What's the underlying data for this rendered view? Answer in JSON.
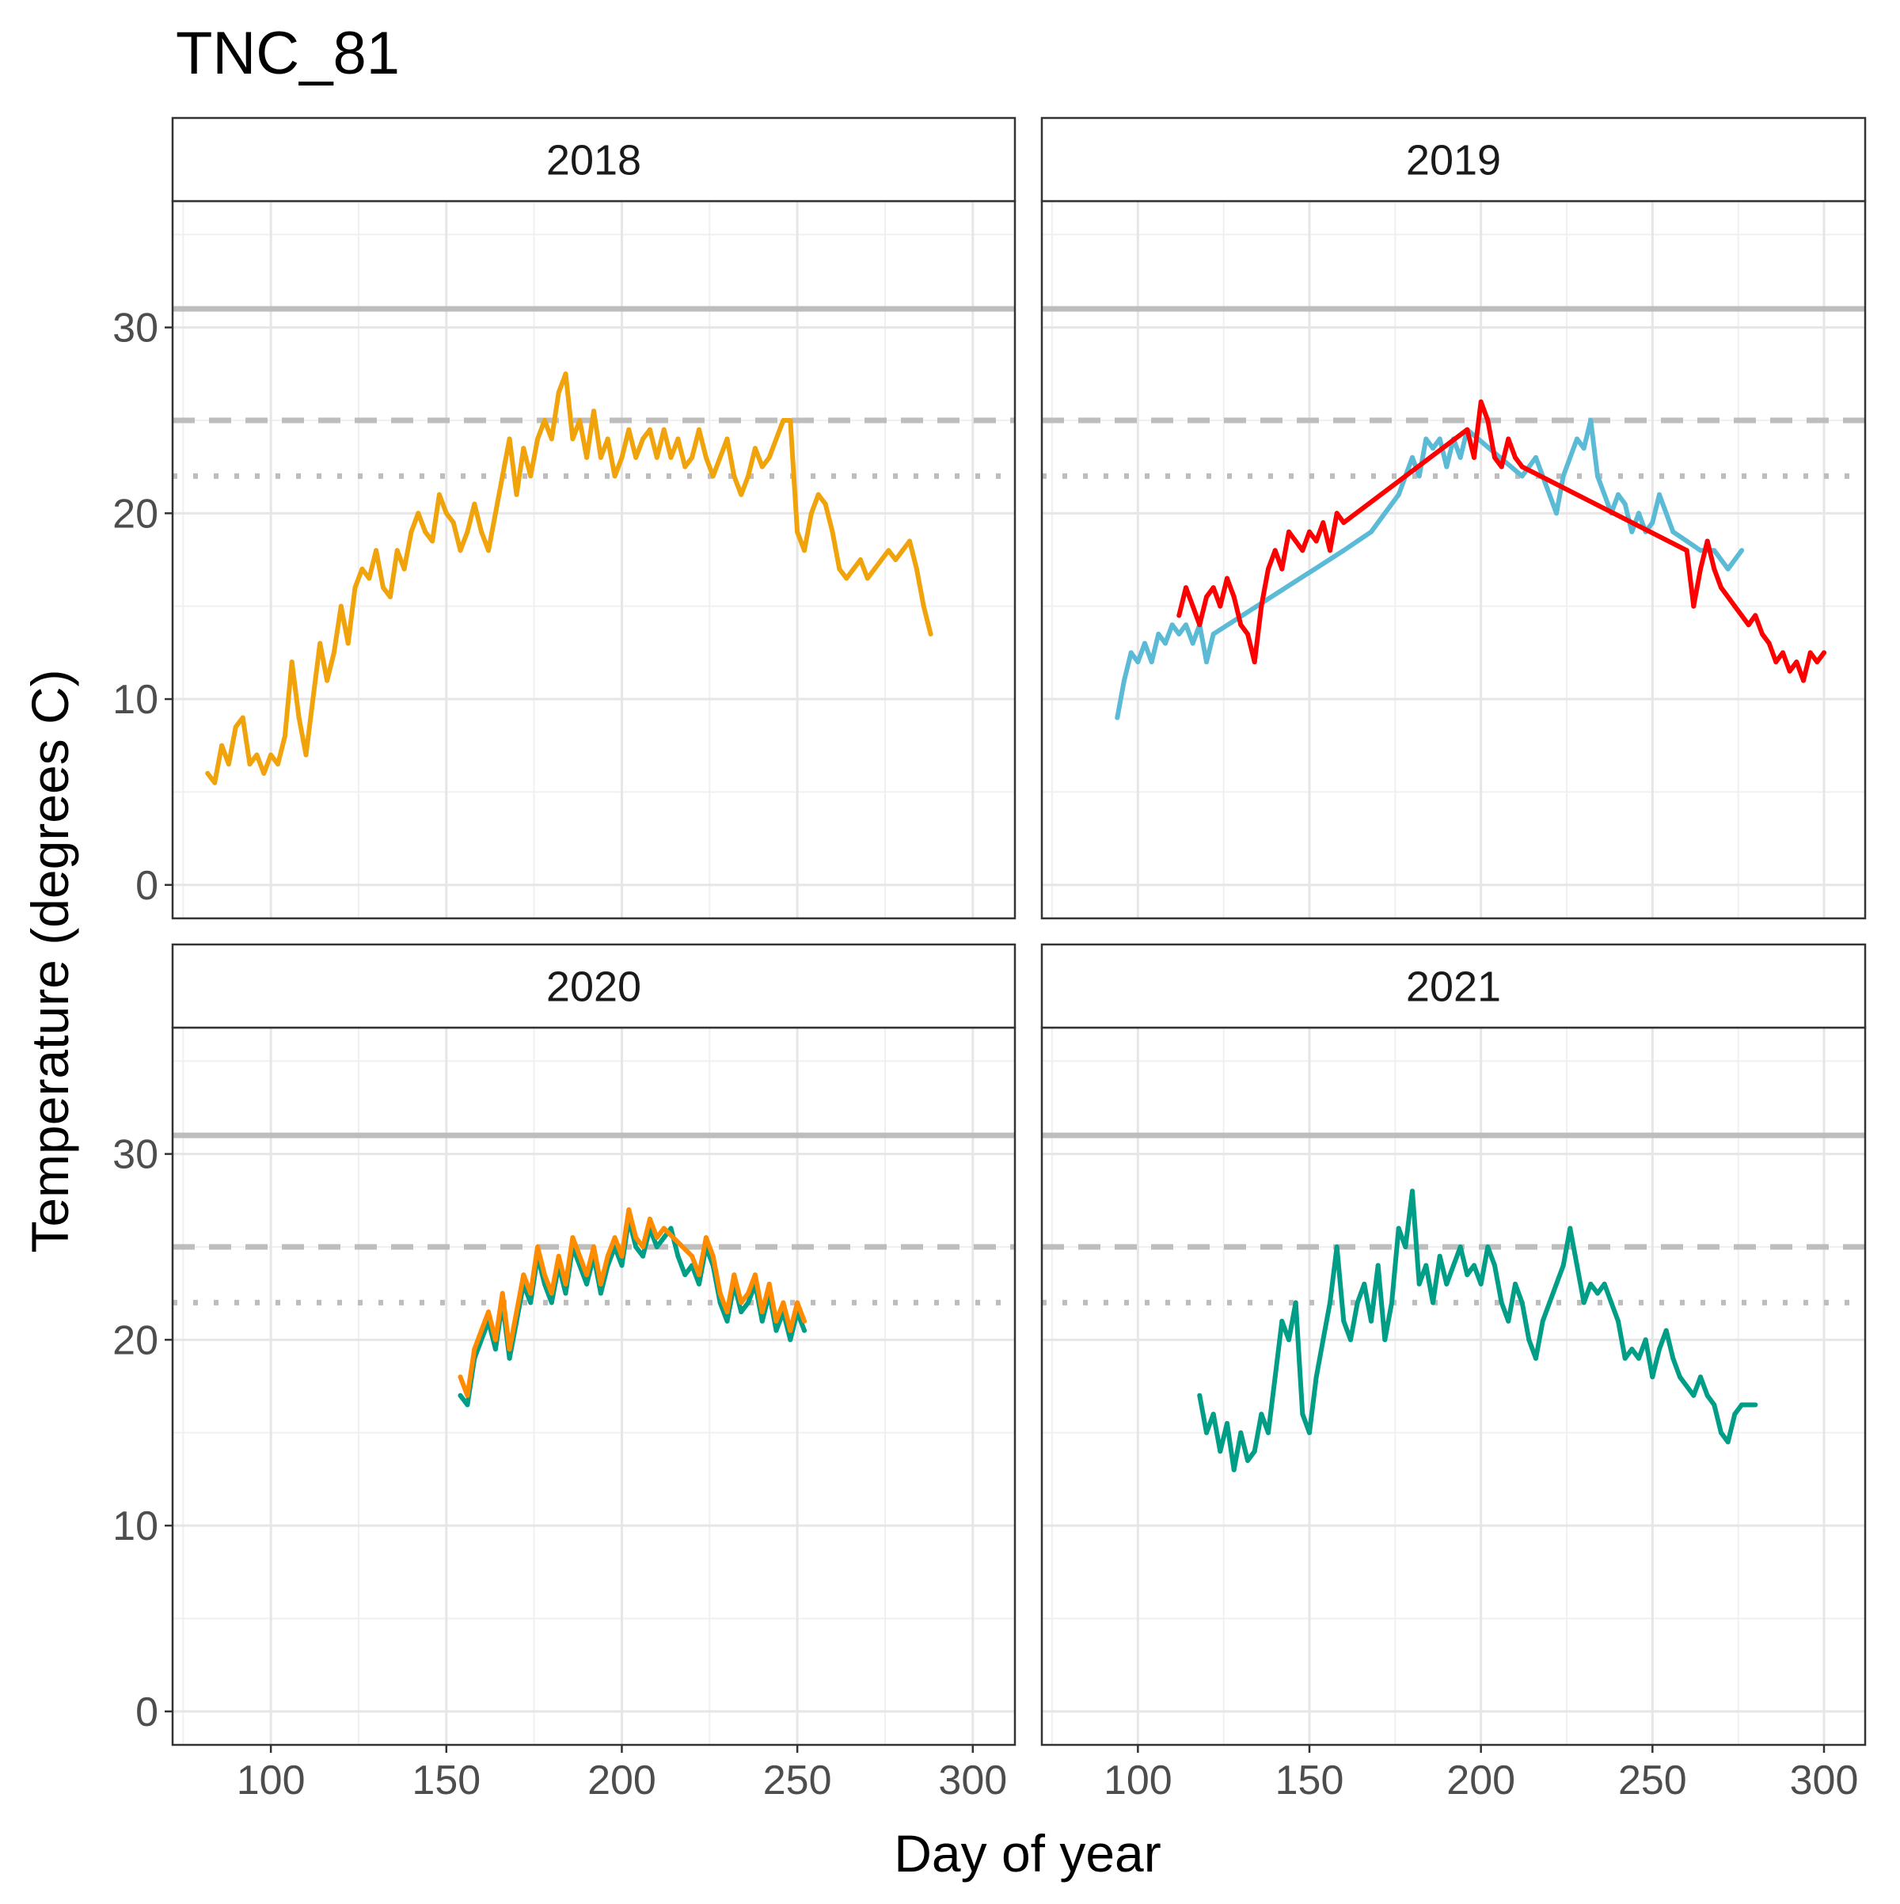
{
  "chart_data": {
    "type": "line",
    "title": "TNC_81",
    "xlabel": "Day of year",
    "ylabel": "Temperature (degrees C)",
    "xlim": [
      72,
      312
    ],
    "ylim": [
      -1.8,
      36.8
    ],
    "x_ticks": [
      100,
      150,
      200,
      250,
      300
    ],
    "y_ticks": [
      0,
      10,
      20,
      30
    ],
    "grid": true,
    "reference_lines": [
      {
        "y": 31,
        "style": "solid",
        "color": "#bdbdbd"
      },
      {
        "y": 25,
        "style": "dashed",
        "color": "#bdbdbd"
      },
      {
        "y": 22,
        "style": "dotted",
        "color": "#bdbdbd"
      }
    ],
    "panels": [
      {
        "strip": "2018",
        "series": [
          {
            "color": "#F0A30A",
            "x": [
              82,
              84,
              86,
              88,
              90,
              92,
              94,
              96,
              98,
              100,
              102,
              104,
              106,
              108,
              110,
              112,
              114,
              116,
              118,
              120,
              122,
              124,
              126,
              128,
              130,
              132,
              134,
              136,
              138,
              140,
              142,
              144,
              146,
              148,
              150,
              152,
              154,
              156,
              158,
              160,
              162,
              164,
              166,
              168,
              170,
              172,
              174,
              176,
              178,
              180,
              182,
              184,
              186,
              188,
              190,
              192,
              194,
              196,
              198,
              200,
              202,
              204,
              206,
              208,
              210,
              212,
              214,
              216,
              218,
              220,
              222,
              224,
              226,
              228,
              230,
              232,
              234,
              236,
              238,
              240,
              242,
              244,
              246,
              248,
              250,
              252,
              254,
              256,
              258,
              260,
              262,
              264,
              266,
              268,
              270,
              272,
              274,
              276,
              278,
              280,
              282,
              284,
              286,
              288
            ],
            "y": [
              6,
              5.5,
              7.5,
              6.5,
              8.5,
              9,
              6.5,
              7,
              6,
              7,
              6.5,
              8,
              12,
              9,
              7,
              10,
              13,
              11,
              12.5,
              15,
              13,
              16,
              17,
              16.5,
              18,
              16,
              15.5,
              18,
              17,
              19,
              20,
              19,
              18.5,
              21,
              20,
              19.5,
              18,
              19,
              20.5,
              19,
              18,
              20,
              22,
              24,
              21,
              23.5,
              22,
              24,
              25,
              24,
              26.5,
              27.5,
              24,
              25,
              23,
              25.5,
              23,
              24,
              22,
              23,
              24.5,
              23,
              24,
              24.5,
              23,
              24.5,
              23,
              24,
              22.5,
              23,
              24.5,
              23,
              22,
              23,
              24,
              22,
              21,
              22,
              23.5,
              22.5,
              23,
              24,
              25,
              25,
              19,
              18,
              20,
              21,
              20.5,
              19,
              17,
              16.5,
              17,
              17.5,
              16.5,
              17,
              17.5,
              18,
              17.5,
              18,
              18.5,
              17,
              15,
              13.5
            ]
          }
        ]
      },
      {
        "strip": "2019",
        "series": [
          {
            "color": "#5BBAD5",
            "x": [
              94,
              96,
              98,
              100,
              102,
              104,
              106,
              108,
              110,
              112,
              114,
              116,
              118,
              120,
              122,
              160,
              164,
              168,
              172,
              176,
              180,
              182,
              184,
              186,
              188,
              190,
              192,
              194,
              196,
              212,
              216,
              220,
              222,
              224,
              226,
              228,
              230,
              232,
              234,
              236,
              238,
              240,
              242,
              244,
              246,
              248,
              250,
              252,
              254,
              256,
              260,
              264,
              268,
              272,
              276
            ],
            "y": [
              9,
              11,
              12.5,
              12,
              13,
              12,
              13.5,
              13,
              14,
              13.5,
              14,
              13,
              14,
              12,
              13.5,
              18,
              18.5,
              19,
              20,
              21,
              23,
              22,
              24,
              23.5,
              24,
              22.5,
              24,
              23,
              24.5,
              22,
              23,
              21,
              20,
              22,
              23,
              24,
              23.5,
              25,
              22,
              21,
              20,
              21,
              20.5,
              19,
              20,
              19,
              19.5,
              21,
              20,
              19,
              18.5,
              18,
              18,
              17,
              18
            ]
          },
          {
            "color": "#FF0000",
            "x": [
              112,
              114,
              116,
              118,
              120,
              122,
              124,
              126,
              128,
              130,
              132,
              134,
              136,
              138,
              140,
              142,
              144,
              146,
              148,
              150,
              152,
              154,
              156,
              158,
              160,
              196,
              198,
              200,
              202,
              204,
              206,
              208,
              210,
              212,
              260,
              262,
              264,
              266,
              268,
              270,
              274,
              276,
              278,
              280,
              282,
              284,
              286,
              288,
              290,
              292,
              294,
              296,
              298,
              300
            ],
            "y": [
              14.5,
              16,
              15,
              14,
              15.5,
              16,
              15,
              16.5,
              15.5,
              14,
              13.5,
              12,
              15,
              17,
              18,
              17,
              19,
              18.5,
              18,
              19,
              18.5,
              19.5,
              18,
              20,
              19.5,
              24.5,
              23,
              26,
              25,
              23,
              22.5,
              24,
              23,
              22.5,
              18,
              15,
              17,
              18.5,
              17,
              16,
              15,
              14.5,
              14,
              14.5,
              13.5,
              13,
              12,
              12.5,
              11.5,
              12,
              11,
              12.5,
              12,
              12.5
            ]
          }
        ]
      },
      {
        "strip": "2020",
        "series": [
          {
            "color": "#009E87",
            "x": [
              154,
              156,
              158,
              160,
              162,
              164,
              166,
              168,
              170,
              172,
              174,
              176,
              178,
              180,
              182,
              184,
              186,
              188,
              190,
              192,
              194,
              196,
              198,
              200,
              202,
              204,
              206,
              208,
              210,
              212,
              214,
              216,
              218,
              220,
              222,
              224,
              226,
              228,
              230,
              232,
              234,
              236,
              238,
              240,
              242,
              244,
              246,
              248,
              250,
              252
            ],
            "y": [
              17,
              16.5,
              19,
              20,
              21,
              19.5,
              22,
              19,
              21,
              23,
              22,
              24.5,
              23,
              22,
              24,
              22.5,
              25,
              24,
              23,
              24.5,
              22.5,
              24,
              25,
              24,
              26.5,
              25,
              24.5,
              26,
              25,
              25.5,
              26,
              24.5,
              23.5,
              24,
              23,
              25,
              24,
              22,
              21,
              23,
              21.5,
              22,
              23,
              21,
              22.5,
              20.5,
              21.5,
              20,
              21.5,
              20.5
            ]
          },
          {
            "color": "#FF8C00",
            "x": [
              154,
              156,
              158,
              160,
              162,
              164,
              166,
              168,
              170,
              172,
              174,
              176,
              178,
              180,
              182,
              184,
              186,
              188,
              190,
              192,
              194,
              196,
              198,
              200,
              202,
              204,
              206,
              208,
              210,
              212,
              220,
              222,
              224,
              226,
              228,
              230,
              232,
              234,
              236,
              238,
              240,
              242,
              244,
              246,
              248,
              250,
              252
            ],
            "y": [
              18,
              17,
              19.5,
              20.5,
              21.5,
              20,
              22.5,
              19.5,
              21.5,
              23.5,
              22.5,
              25,
              23.5,
              22.5,
              24.5,
              23,
              25.5,
              24.5,
              23.5,
              25,
              23,
              24.5,
              25.5,
              24.5,
              27,
              25.5,
              25,
              26.5,
              25.5,
              26,
              24.5,
              23.5,
              25.5,
              24.5,
              22.5,
              21.5,
              23.5,
              22,
              22.5,
              23.5,
              21.5,
              23,
              21,
              22,
              20.5,
              22,
              21
            ]
          }
        ]
      },
      {
        "strip": "2021",
        "series": [
          {
            "color": "#009E87",
            "x": [
              118,
              120,
              122,
              124,
              126,
              128,
              130,
              132,
              134,
              136,
              138,
              140,
              142,
              144,
              146,
              148,
              150,
              152,
              154,
              156,
              158,
              160,
              162,
              164,
              166,
              168,
              170,
              172,
              174,
              176,
              178,
              180,
              182,
              184,
              186,
              188,
              190,
              192,
              194,
              196,
              198,
              200,
              202,
              204,
              206,
              208,
              210,
              212,
              214,
              216,
              218,
              220,
              222,
              224,
              226,
              228,
              230,
              232,
              234,
              236,
              238,
              240,
              242,
              244,
              246,
              248,
              250,
              252,
              254,
              256,
              258,
              260,
              262,
              264,
              266,
              268,
              270,
              272,
              274,
              276,
              278,
              280
            ],
            "y": [
              17,
              15,
              16,
              14,
              15.5,
              13,
              15,
              13.5,
              14,
              16,
              15,
              18,
              21,
              20,
              22,
              16,
              15,
              18,
              20,
              22,
              25,
              21,
              20,
              22,
              23,
              21,
              24,
              20,
              22,
              26,
              25,
              28,
              23,
              24,
              22,
              24.5,
              23,
              24,
              25,
              23.5,
              24,
              23,
              25,
              24,
              22,
              21,
              23,
              22,
              20,
              19,
              21,
              22,
              23,
              24,
              26,
              24,
              22,
              23,
              22.5,
              23,
              22,
              21,
              19,
              19.5,
              19,
              20,
              18,
              19.5,
              20.5,
              19,
              18,
              17.5,
              17,
              18,
              17,
              16.5,
              15,
              14.5,
              16,
              16.5,
              16.5,
              16.5
            ]
          }
        ]
      }
    ]
  }
}
